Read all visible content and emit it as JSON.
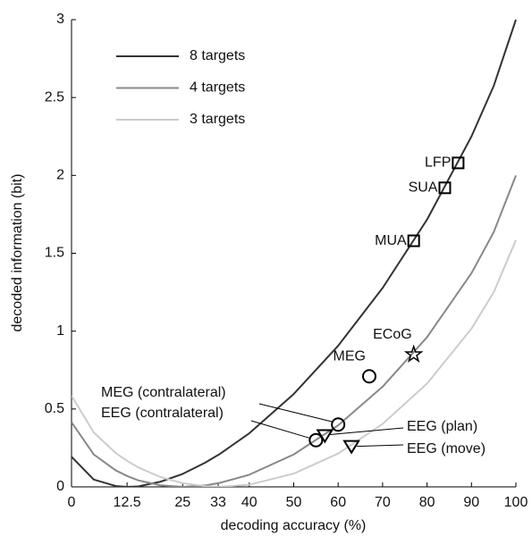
{
  "chart_data": {
    "type": "line",
    "x_label": "decoding accuracy (%)",
    "y_label": "decoded information (bit)",
    "x": [
      0,
      5,
      10,
      12.5,
      15,
      20,
      25,
      30,
      33.3,
      40,
      50,
      60,
      70,
      80,
      90,
      95,
      100
    ],
    "series": [
      {
        "name": "8 targets",
        "color": "#333333",
        "values": [
          0.193,
          0.047,
          0.005,
          0,
          0.003,
          0.033,
          0.083,
          0.154,
          0.21,
          0.344,
          0.596,
          0.906,
          1.277,
          1.716,
          2.25,
          2.574,
          3
        ]
      },
      {
        "name": "4 targets",
        "color": "#888888",
        "values": [
          0.415,
          0.208,
          0.105,
          0.07,
          0.042,
          0.01,
          0,
          0.009,
          0.025,
          0.078,
          0.208,
          0.395,
          0.643,
          0.961,
          1.372,
          1.635,
          2
        ]
      },
      {
        "name": "3 targets",
        "color": "#cccccc",
        "values": [
          0.585,
          0.349,
          0.216,
          0.167,
          0.125,
          0.063,
          0.024,
          0.004,
          0,
          0.014,
          0.085,
          0.214,
          0.404,
          0.663,
          1.016,
          1.249,
          1.585
        ]
      }
    ],
    "points": [
      {
        "label": "LFP",
        "marker": "square",
        "x": 87,
        "y": 2.08
      },
      {
        "label": "SUA",
        "marker": "square",
        "x": 84,
        "y": 1.92
      },
      {
        "label": "MUA",
        "marker": "square",
        "x": 77,
        "y": 1.58
      },
      {
        "label": "ECoG",
        "marker": "star",
        "x": 77,
        "y": 0.85
      },
      {
        "label": "MEG",
        "marker": "circle",
        "x": 67,
        "y": 0.71
      },
      {
        "label": "MEG (contralateral)",
        "marker": "circle",
        "x": 60,
        "y": 0.4
      },
      {
        "label": "EEG (contralateral)",
        "marker": "circle",
        "x": 55,
        "y": 0.3
      },
      {
        "label": "EEG (plan)",
        "marker": "triangle",
        "x": 57,
        "y": 0.33
      },
      {
        "label": "EEG (move)",
        "marker": "triangle",
        "x": 63,
        "y": 0.26
      }
    ],
    "xlim": [
      0,
      100
    ],
    "ylim": [
      0,
      3
    ],
    "xticks": [
      0,
      12.5,
      25,
      33,
      40,
      50,
      60,
      70,
      80,
      90,
      100
    ],
    "yticks": [
      0,
      0.5,
      1,
      1.5,
      2,
      2.5,
      3
    ],
    "legend": "upper left"
  }
}
